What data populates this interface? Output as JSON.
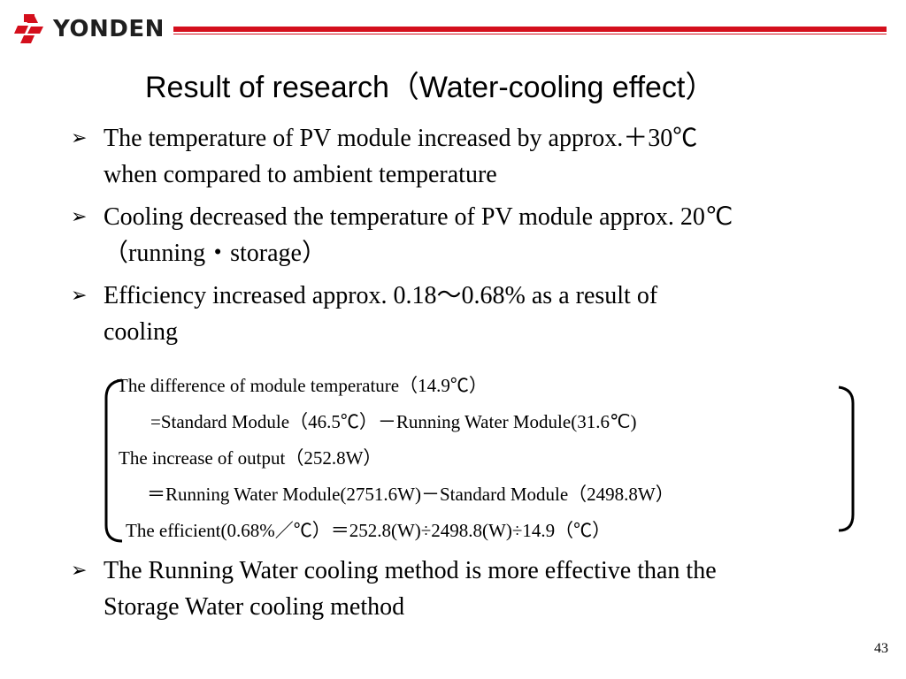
{
  "header": {
    "logo_text": "YONDEN",
    "brand_color": "#d40f1c"
  },
  "slide": {
    "title": "Result of research（Water-cooling effect）",
    "bullet_icon": "arrow-bullet-icon",
    "bullets": [
      {
        "lines": [
          "The temperature of PV module increased by approx.＋30℃",
          "when compared to ambient temperature"
        ]
      },
      {
        "lines": [
          "Cooling decreased the temperature of PV module approx. 20℃",
          "（running・storage）"
        ]
      },
      {
        "lines": [
          "Efficiency increased approx. 0.18～0.68% as a result of",
          "cooling"
        ]
      },
      {
        "lines": [
          "The Running Water cooling method is more effective than the",
          "Storage Water cooling method"
        ]
      }
    ],
    "formula_lines": [
      "The difference of module temperature（14.9℃）",
      "=Standard Module（46.5℃）－Running Water Module(31.6℃)",
      "The increase of output（252.8W）",
      "＝Running Water Module(2751.6W)－Standard Module（2498.8W）",
      "The efficient(0.68%／℃）＝252.8(W)÷2498.8(W)÷14.9（℃）"
    ],
    "page_number": "43"
  }
}
